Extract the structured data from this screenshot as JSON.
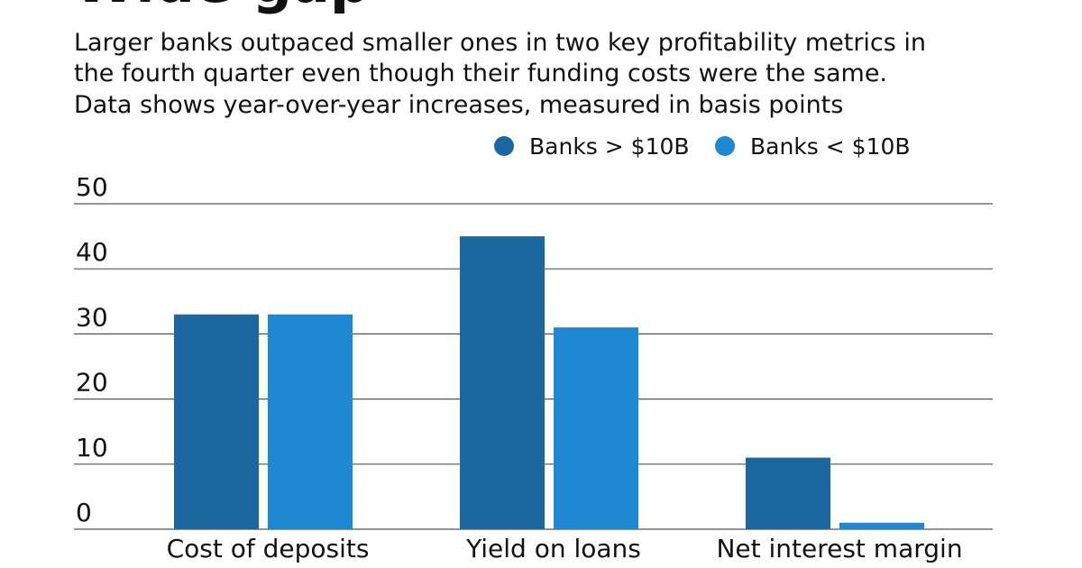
{
  "chart_data": {
    "type": "bar",
    "title": "Wide gap",
    "subtitle": [
      "Larger banks outpaced smaller ones in two key profitability metrics in",
      "the fourth quarter even though their funding costs were the same.",
      "Data shows year-over-year increases, measured in basis points"
    ],
    "categories": [
      "Cost of deposits",
      "Yield on loans",
      "Net interest margin"
    ],
    "series": [
      {
        "name": "Banks > $10B",
        "color": "#1c67a0",
        "values": [
          33,
          45,
          11
        ]
      },
      {
        "name": "Banks < $10B",
        "color": "#1f88d2",
        "values": [
          33,
          31,
          1
        ]
      }
    ],
    "ylim": [
      0,
      50
    ],
    "yticks": [
      0,
      10,
      20,
      30,
      40,
      50
    ],
    "grid": true,
    "legend": "top"
  }
}
